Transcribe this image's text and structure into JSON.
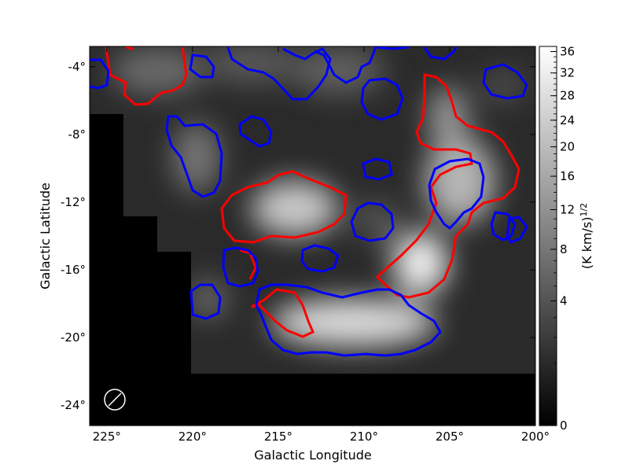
{
  "chart_data": {
    "type": "heatmap",
    "xlabel": "Galactic Longitude",
    "ylabel": "Galactic Latitude",
    "colorbar_label": "(K km/s)",
    "colorbar_label_exp": "1/2",
    "xlim": [
      226,
      200
    ],
    "ylim": [
      -25.2,
      -2.8
    ],
    "x_ticks": [
      225,
      220,
      215,
      210,
      205,
      200
    ],
    "x_tick_labels": [
      "225°",
      "220°",
      "215°",
      "210°",
      "205°",
      "200°"
    ],
    "y_ticks": [
      -4,
      -8,
      -12,
      -16,
      -20,
      -24
    ],
    "y_tick_labels": [
      "-4°",
      "-8°",
      "-12°",
      "-16°",
      "-20°",
      "-24°"
    ],
    "colorbar_ticks": [
      0,
      4,
      8,
      12,
      16,
      20,
      24,
      28,
      32,
      36
    ],
    "colorbar_tick_labels": [
      "0",
      "4",
      "8",
      "12",
      "16",
      "20",
      "24",
      "28",
      "32",
      "36"
    ],
    "colorbar_max": 37,
    "colormap": "gray",
    "contour_colors": {
      "red": "#ff0000",
      "blue": "#0000ff"
    },
    "beam_marker": "circle-with-slash",
    "bright_regions": [
      {
        "name": "peak-lower-right",
        "l": 206.5,
        "b": -16.0,
        "value": 34
      },
      {
        "name": "ridge-bottom",
        "l": 210.5,
        "b": -19.5,
        "value": 30
      },
      {
        "name": "ridge-mid",
        "l": 213.5,
        "b": -12.6,
        "value": 26
      },
      {
        "name": "ridge-right-upper",
        "l": 205.0,
        "b": -9.0,
        "value": 22
      },
      {
        "name": "blob-left",
        "l": 219.0,
        "b": -9.5,
        "value": 16
      }
    ],
    "masked_region": "no data (black) in lower-left and bottom"
  }
}
